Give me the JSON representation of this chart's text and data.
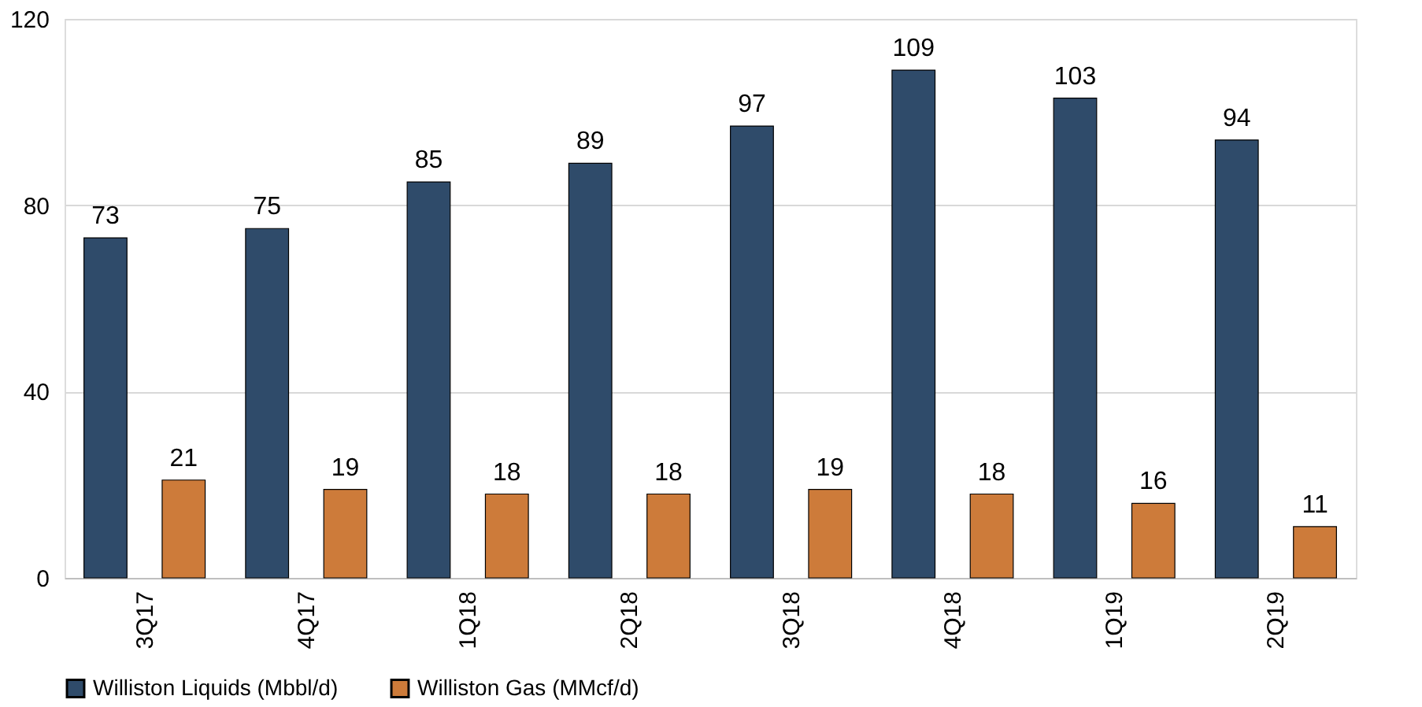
{
  "chart_data": {
    "type": "bar",
    "categories": [
      "3Q17",
      "4Q17",
      "1Q18",
      "2Q18",
      "3Q18",
      "4Q18",
      "1Q19",
      "2Q19"
    ],
    "series": [
      {
        "name": "Williston Liquids (Mbbl/d)",
        "color": "#2f4b6a",
        "values": [
          73,
          75,
          85,
          89,
          97,
          109,
          103,
          94
        ]
      },
      {
        "name": "Williston Gas (MMcf/d)",
        "color": "#cd7b3a",
        "values": [
          21,
          19,
          18,
          18,
          19,
          18,
          16,
          11
        ]
      }
    ],
    "ylim": [
      0,
      120
    ],
    "yticks": [
      0,
      40,
      80,
      120
    ],
    "grid": "y",
    "legend": "bottom",
    "data_labels": true
  }
}
